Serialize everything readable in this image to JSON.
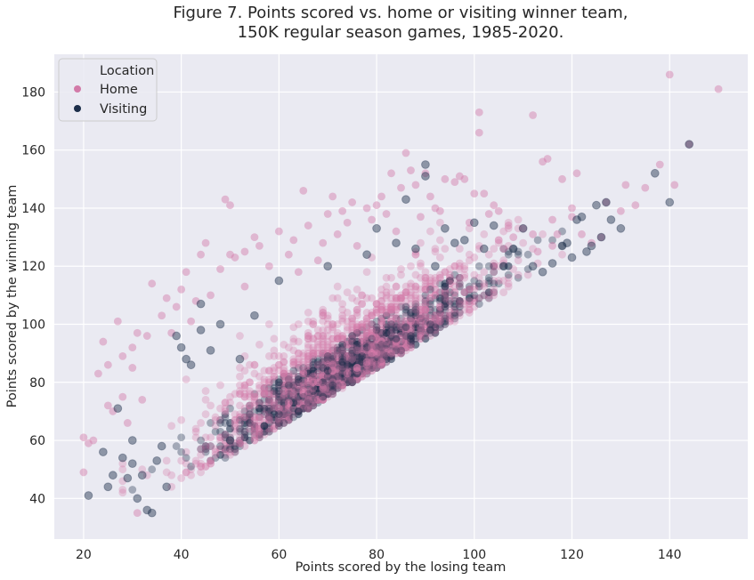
{
  "chart_data": {
    "type": "scatter",
    "title": "Figure 7. Points scored vs. home or visiting winner team,",
    "subtitle": "150K regular season games, 1985-2020.",
    "xlabel": "Points scored by the losing team",
    "ylabel": "Points scored by the winning team",
    "xlim": [
      14,
      156
    ],
    "ylim": [
      26,
      193
    ],
    "xticks": [
      20,
      40,
      60,
      80,
      100,
      120,
      140
    ],
    "yticks": [
      40,
      60,
      80,
      100,
      120,
      140,
      160,
      180
    ],
    "grid": true,
    "legend": {
      "title": "Location",
      "placement": "top-left",
      "entries": [
        {
          "name": "Home",
          "color": "#d27aa8"
        },
        {
          "name": "Visiting",
          "color": "#1c2e4a"
        }
      ]
    },
    "series": [
      {
        "name": "Home",
        "color": "#d27aa8",
        "points": [
          [
            20,
            49
          ],
          [
            20,
            61
          ],
          [
            21,
            59
          ],
          [
            22,
            60
          ],
          [
            23,
            83
          ],
          [
            24,
            94
          ],
          [
            25,
            72
          ],
          [
            25,
            86
          ],
          [
            26,
            70
          ],
          [
            27,
            101
          ],
          [
            28,
            89
          ],
          [
            28,
            75
          ],
          [
            29,
            66
          ],
          [
            30,
            92
          ],
          [
            30,
            85
          ],
          [
            31,
            97
          ],
          [
            31,
            35
          ],
          [
            32,
            74
          ],
          [
            33,
            96
          ],
          [
            34,
            114
          ],
          [
            36,
            103
          ],
          [
            37,
            109
          ],
          [
            38,
            97
          ],
          [
            39,
            106
          ],
          [
            40,
            112
          ],
          [
            41,
            118
          ],
          [
            42,
            101
          ],
          [
            43,
            108
          ],
          [
            44,
            124
          ],
          [
            45,
            128
          ],
          [
            46,
            110
          ],
          [
            48,
            119
          ],
          [
            49,
            143
          ],
          [
            50,
            141
          ],
          [
            50,
            124
          ],
          [
            51,
            123
          ],
          [
            53,
            125
          ],
          [
            53,
            113
          ],
          [
            55,
            130
          ],
          [
            56,
            127
          ],
          [
            58,
            120
          ],
          [
            60,
            132
          ],
          [
            62,
            124
          ],
          [
            63,
            129
          ],
          [
            64,
            118
          ],
          [
            65,
            146
          ],
          [
            66,
            134
          ],
          [
            68,
            122
          ],
          [
            69,
            128
          ],
          [
            70,
            138
          ],
          [
            71,
            144
          ],
          [
            72,
            131
          ],
          [
            73,
            139
          ],
          [
            74,
            135
          ],
          [
            75,
            142
          ],
          [
            76,
            127
          ],
          [
            78,
            140
          ],
          [
            79,
            136
          ],
          [
            80,
            141
          ],
          [
            81,
            144
          ],
          [
            82,
            138
          ],
          [
            83,
            152
          ],
          [
            84,
            132
          ],
          [
            85,
            147
          ],
          [
            86,
            159
          ],
          [
            87,
            153
          ],
          [
            88,
            148
          ],
          [
            89,
            137
          ],
          [
            90,
            152
          ],
          [
            91,
            144
          ],
          [
            92,
            140
          ],
          [
            93,
            139
          ],
          [
            94,
            150
          ],
          [
            96,
            149
          ],
          [
            97,
            151
          ],
          [
            98,
            150
          ],
          [
            99,
            135
          ],
          [
            100,
            145
          ],
          [
            101,
            173
          ],
          [
            101,
            166
          ],
          [
            102,
            145
          ],
          [
            103,
            138
          ],
          [
            104,
            141
          ],
          [
            105,
            139
          ],
          [
            106,
            126
          ],
          [
            107,
            134
          ],
          [
            108,
            130
          ],
          [
            110,
            133
          ],
          [
            112,
            172
          ],
          [
            113,
            125
          ],
          [
            114,
            156
          ],
          [
            115,
            157
          ],
          [
            116,
            127
          ],
          [
            117,
            131
          ],
          [
            118,
            150
          ],
          [
            120,
            140
          ],
          [
            121,
            152
          ],
          [
            122,
            131
          ],
          [
            124,
            128
          ],
          [
            126,
            130
          ],
          [
            127,
            142
          ],
          [
            130,
            139
          ],
          [
            131,
            148
          ],
          [
            133,
            141
          ],
          [
            135,
            147
          ],
          [
            138,
            155
          ],
          [
            140,
            186
          ],
          [
            141,
            148
          ],
          [
            144,
            162
          ],
          [
            150,
            181
          ],
          [
            112,
            131
          ],
          [
            116,
            136
          ],
          [
            120,
            137
          ]
        ]
      },
      {
        "name": "Visiting",
        "color": "#1c2e4a",
        "points": [
          [
            21,
            41
          ],
          [
            24,
            56
          ],
          [
            25,
            44
          ],
          [
            26,
            48
          ],
          [
            27,
            71
          ],
          [
            28,
            54
          ],
          [
            29,
            47
          ],
          [
            30,
            52
          ],
          [
            30,
            60
          ],
          [
            31,
            40
          ],
          [
            32,
            48
          ],
          [
            33,
            36
          ],
          [
            34,
            35
          ],
          [
            35,
            53
          ],
          [
            36,
            58
          ],
          [
            37,
            44
          ],
          [
            39,
            96
          ],
          [
            40,
            92
          ],
          [
            41,
            88
          ],
          [
            42,
            86
          ],
          [
            44,
            98
          ],
          [
            44,
            107
          ],
          [
            46,
            91
          ],
          [
            48,
            100
          ],
          [
            50,
            60
          ],
          [
            52,
            88
          ],
          [
            55,
            103
          ],
          [
            60,
            115
          ],
          [
            70,
            120
          ],
          [
            78,
            124
          ],
          [
            80,
            133
          ],
          [
            84,
            128
          ],
          [
            86,
            143
          ],
          [
            88,
            126
          ],
          [
            90,
            155
          ],
          [
            90,
            151
          ],
          [
            92,
            120
          ],
          [
            94,
            133
          ],
          [
            96,
            128
          ],
          [
            98,
            129
          ],
          [
            100,
            135
          ],
          [
            102,
            126
          ],
          [
            104,
            134
          ],
          [
            106,
            120
          ],
          [
            108,
            126
          ],
          [
            110,
            133
          ],
          [
            112,
            120
          ],
          [
            114,
            118
          ],
          [
            116,
            121
          ],
          [
            118,
            127
          ],
          [
            120,
            123
          ],
          [
            121,
            136
          ],
          [
            122,
            137
          ],
          [
            123,
            125
          ],
          [
            124,
            127
          ],
          [
            125,
            141
          ],
          [
            126,
            130
          ],
          [
            128,
            136
          ],
          [
            130,
            133
          ],
          [
            137,
            152
          ],
          [
            140,
            142
          ],
          [
            144,
            162
          ],
          [
            127,
            142
          ],
          [
            119,
            128
          ]
        ]
      }
    ]
  }
}
